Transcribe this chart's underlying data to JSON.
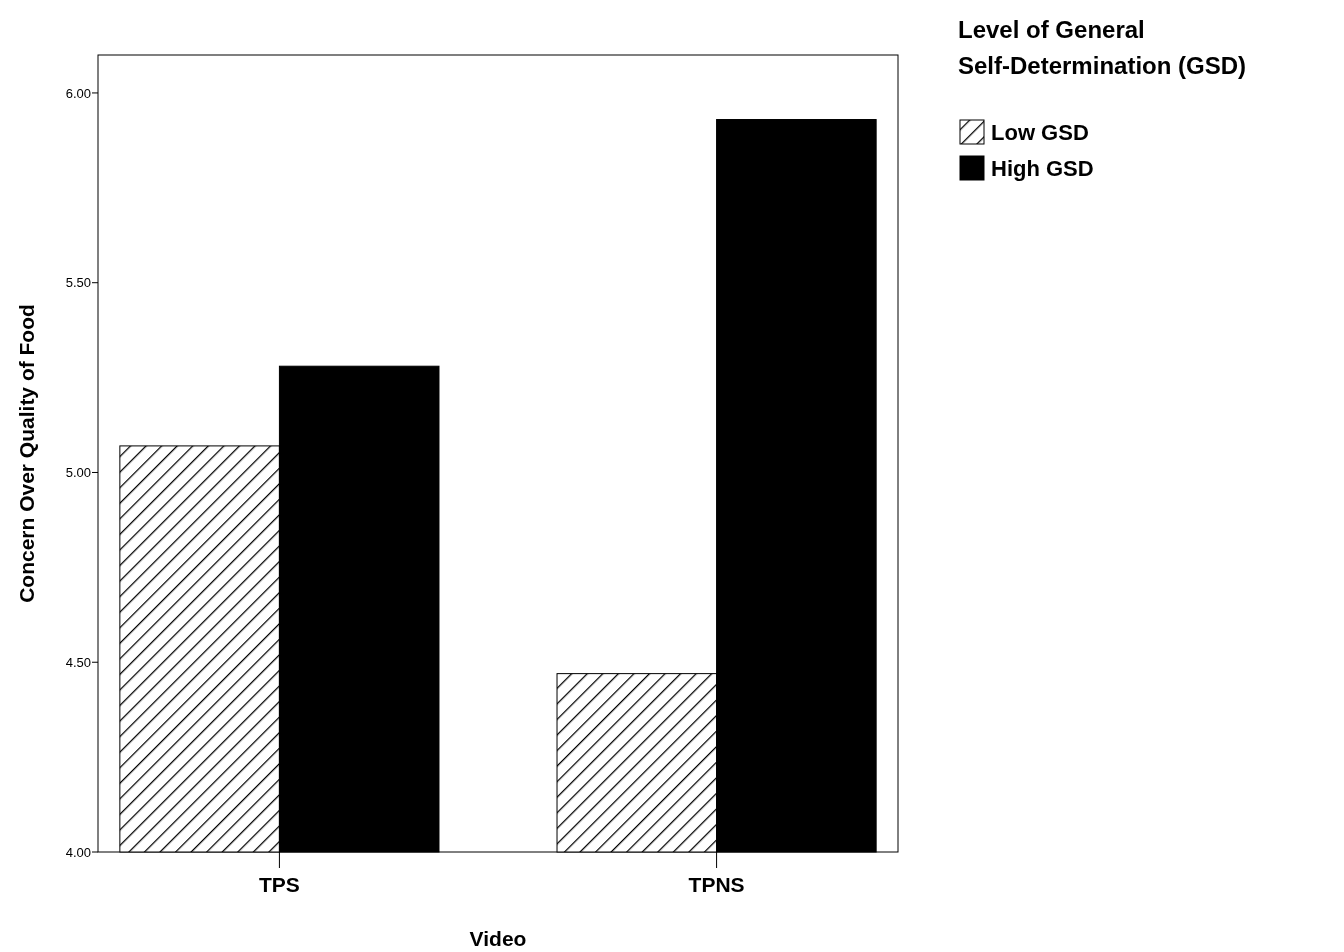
{
  "chart_data": {
    "type": "bar",
    "xlabel": "Video",
    "ylabel": "Concern Over Quality of Food",
    "legend_title": "Level of General Self-Determination (GSD)",
    "categories": [
      "TPS",
      "TPNS"
    ],
    "series": [
      {
        "name": "Low GSD",
        "color": "#000000",
        "values": [
          5.07,
          4.47
        ]
      },
      {
        "name": "High GSD",
        "color": "#000000",
        "values": [
          5.28,
          5.93
        ]
      }
    ],
    "ylim": [
      4.0,
      6.1
    ],
    "yticks": [
      {
        "value": 4,
        "label": "4.00"
      },
      {
        "value": 4.5,
        "label": "4.50"
      },
      {
        "value": 5,
        "label": "5.00"
      },
      {
        "value": 5.5,
        "label": "5.50"
      },
      {
        "value": 6,
        "label": "6.00"
      }
    ],
    "grid": false,
    "legend": "right"
  }
}
